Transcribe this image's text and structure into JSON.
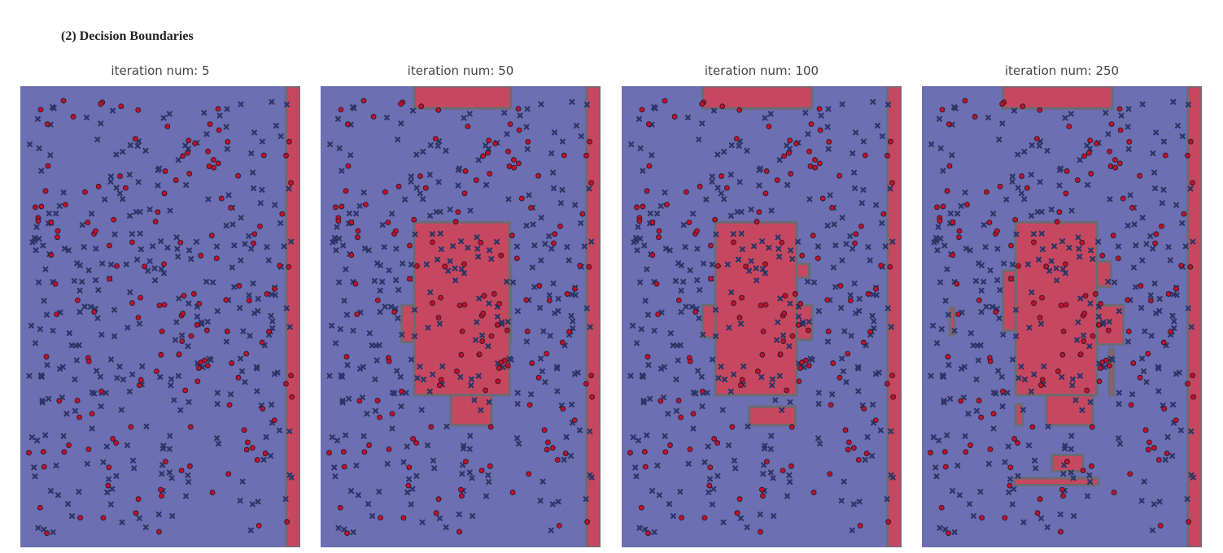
{
  "header": {
    "title": "(2) Decision Boundaries"
  },
  "colors": {
    "class_neg": "#6c6fb1",
    "class_pos": "#c64860",
    "boundary": "#6c6b73",
    "marker_pos": "#c2102b",
    "marker_neg": "#2b3566",
    "marker_edge": "#1a1a2a"
  },
  "chart_data": [
    {
      "type": "scatter",
      "title": "iteration num: 5",
      "iteration": 5,
      "xlim": [
        0,
        1
      ],
      "ylim": [
        0,
        1
      ],
      "grid": false,
      "axes_visible": false,
      "marker_classes": [
        "circle (red)",
        "x (dark blue)"
      ],
      "positive_regions": [
        {
          "x": [
            0.95,
            1.0
          ],
          "y": [
            0.0,
            1.0
          ]
        }
      ]
    },
    {
      "type": "scatter",
      "title": "iteration num: 50",
      "iteration": 50,
      "xlim": [
        0,
        1
      ],
      "ylim": [
        0,
        1
      ],
      "grid": false,
      "axes_visible": false,
      "marker_classes": [
        "circle (red)",
        "x (dark blue)"
      ],
      "positive_regions": [
        {
          "x": [
            0.95,
            1.0
          ],
          "y": [
            0.0,
            1.0
          ]
        },
        {
          "x": [
            0.335,
            0.68
          ],
          "y": [
            0.952,
            1.0
          ]
        },
        {
          "x": [
            0.335,
            0.675
          ],
          "y": [
            0.33,
            0.705
          ]
        },
        {
          "x": [
            0.29,
            0.335
          ],
          "y": [
            0.445,
            0.525
          ]
        },
        {
          "x": [
            0.675,
            0.68
          ],
          "y": [
            0.445,
            0.61
          ]
        },
        {
          "x": [
            0.465,
            0.61
          ],
          "y": [
            0.265,
            0.33
          ]
        }
      ]
    },
    {
      "type": "scatter",
      "title": "iteration num: 100",
      "iteration": 100,
      "xlim": [
        0,
        1
      ],
      "ylim": [
        0,
        1
      ],
      "grid": false,
      "axes_visible": false,
      "marker_classes": [
        "circle (red)",
        "x (dark blue)"
      ],
      "positive_regions": [
        {
          "x": [
            0.95,
            1.0
          ],
          "y": [
            0.0,
            1.0
          ]
        },
        {
          "x": [
            0.29,
            0.68
          ],
          "y": [
            0.952,
            1.0
          ]
        },
        {
          "x": [
            0.335,
            0.625
          ],
          "y": [
            0.33,
            0.705
          ]
        },
        {
          "x": [
            0.29,
            0.335
          ],
          "y": [
            0.455,
            0.525
          ]
        },
        {
          "x": [
            0.625,
            0.68
          ],
          "y": [
            0.45,
            0.525
          ]
        },
        {
          "x": [
            0.625,
            0.67
          ],
          "y": [
            0.585,
            0.615
          ]
        },
        {
          "x": [
            0.455,
            0.62
          ],
          "y": [
            0.265,
            0.305
          ]
        }
      ]
    },
    {
      "type": "scatter",
      "title": "iteration num: 250",
      "iteration": 250,
      "xlim": [
        0,
        1
      ],
      "ylim": [
        0,
        1
      ],
      "grid": false,
      "axes_visible": false,
      "marker_classes": [
        "circle (red)",
        "x (dark blue)"
      ],
      "positive_regions": [
        {
          "x": [
            0.95,
            1.0
          ],
          "y": [
            0.0,
            1.0
          ]
        },
        {
          "x": [
            0.29,
            0.68
          ],
          "y": [
            0.952,
            1.0
          ]
        },
        {
          "x": [
            0.335,
            0.625
          ],
          "y": [
            0.33,
            0.705
          ]
        },
        {
          "x": [
            0.29,
            0.335
          ],
          "y": [
            0.47,
            0.6
          ]
        },
        {
          "x": [
            0.625,
            0.72
          ],
          "y": [
            0.44,
            0.525
          ]
        },
        {
          "x": [
            0.625,
            0.675
          ],
          "y": [
            0.565,
            0.62
          ]
        },
        {
          "x": [
            0.445,
            0.61
          ],
          "y": [
            0.265,
            0.33
          ]
        },
        {
          "x": [
            0.335,
            0.36
          ],
          "y": [
            0.265,
            0.31
          ]
        },
        {
          "x": [
            0.465,
            0.575
          ],
          "y": [
            0.165,
            0.2
          ]
        },
        {
          "x": [
            0.1,
            0.115
          ],
          "y": [
            0.46,
            0.52
          ]
        },
        {
          "x": [
            0.67,
            0.685
          ],
          "y": [
            0.33,
            0.43
          ]
        },
        {
          "x": [
            0.33,
            0.63
          ],
          "y": [
            0.135,
            0.15
          ]
        }
      ]
    }
  ]
}
